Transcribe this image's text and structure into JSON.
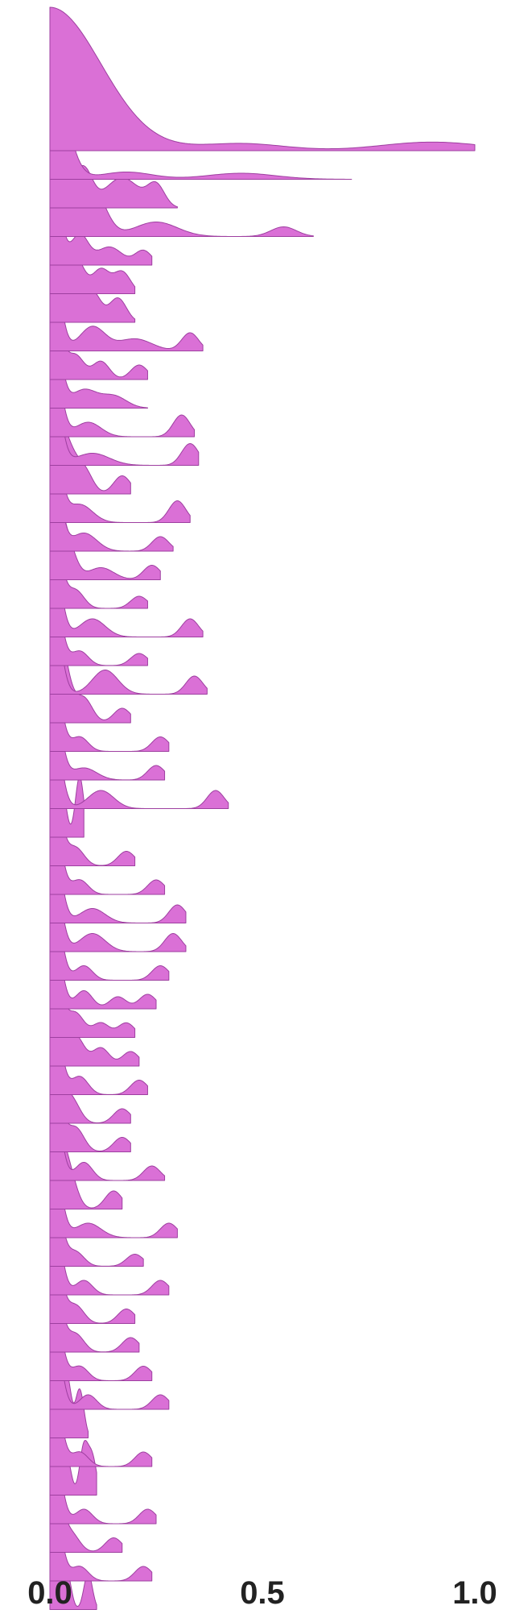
{
  "chart_data": {
    "type": "area",
    "subtype": "ridgeline",
    "title": "",
    "xlabel": "",
    "ylabel": "",
    "xlim": [
      0.0,
      1.0
    ],
    "xticks": [
      {
        "value": 0.0,
        "label": "0.0"
      },
      {
        "value": 0.5,
        "label": "0.5"
      },
      {
        "value": 1.0,
        "label": "1.0"
      }
    ],
    "color": "#da70d6",
    "grid": false,
    "legend": "none",
    "ridges": [
      {
        "max": 1.0,
        "peaks": [
          [
            0.0,
            1.0,
            0.12
          ],
          [
            0.45,
            0.05,
            0.1
          ],
          [
            0.9,
            0.06,
            0.12
          ]
        ]
      },
      {
        "max": 0.71,
        "peaks": [
          [
            0.0,
            1.0,
            0.035
          ],
          [
            0.18,
            0.06,
            0.06
          ],
          [
            0.45,
            0.05,
            0.08
          ]
        ]
      },
      {
        "max": 0.3,
        "peaks": [
          [
            0.0,
            1.0,
            0.03
          ],
          [
            0.08,
            0.3,
            0.02
          ],
          [
            0.17,
            0.25,
            0.04
          ],
          [
            0.25,
            0.18,
            0.02
          ]
        ]
      },
      {
        "max": 0.62,
        "peaks": [
          [
            0.0,
            1.0,
            0.03
          ],
          [
            0.1,
            0.4,
            0.03
          ],
          [
            0.25,
            0.12,
            0.05
          ],
          [
            0.55,
            0.08,
            0.03
          ]
        ]
      },
      {
        "max": 0.24,
        "peaks": [
          [
            0.0,
            1.0,
            0.02
          ],
          [
            0.07,
            0.25,
            0.02
          ],
          [
            0.14,
            0.15,
            0.03
          ],
          [
            0.22,
            0.12,
            0.02
          ]
        ]
      },
      {
        "max": 0.2,
        "peaks": [
          [
            0.0,
            1.0,
            0.02
          ],
          [
            0.06,
            0.3,
            0.02
          ],
          [
            0.12,
            0.2,
            0.02
          ],
          [
            0.17,
            0.18,
            0.02
          ]
        ]
      },
      {
        "max": 0.2,
        "peaks": [
          [
            0.0,
            1.0,
            0.02
          ],
          [
            0.05,
            0.3,
            0.02
          ],
          [
            0.1,
            0.25,
            0.02
          ],
          [
            0.16,
            0.2,
            0.02
          ]
        ]
      },
      {
        "max": 0.36,
        "peaks": [
          [
            0.0,
            1.0,
            0.02
          ],
          [
            0.1,
            0.2,
            0.03
          ],
          [
            0.2,
            0.1,
            0.04
          ],
          [
            0.33,
            0.15,
            0.02
          ]
        ]
      },
      {
        "max": 0.23,
        "peaks": [
          [
            0.0,
            1.0,
            0.02
          ],
          [
            0.06,
            0.2,
            0.02
          ],
          [
            0.12,
            0.15,
            0.02
          ],
          [
            0.21,
            0.12,
            0.02
          ]
        ]
      },
      {
        "max": 0.23,
        "peaks": [
          [
            0.0,
            1.0,
            0.02
          ],
          [
            0.08,
            0.15,
            0.03
          ],
          [
            0.15,
            0.1,
            0.03
          ]
        ]
      },
      {
        "max": 0.34,
        "peaks": [
          [
            0.0,
            1.0,
            0.02
          ],
          [
            0.09,
            0.12,
            0.03
          ],
          [
            0.31,
            0.18,
            0.02
          ]
        ]
      },
      {
        "max": 0.35,
        "peaks": [
          [
            0.0,
            1.0,
            0.02
          ],
          [
            0.1,
            0.1,
            0.04
          ],
          [
            0.33,
            0.18,
            0.02
          ]
        ]
      },
      {
        "max": 0.19,
        "peaks": [
          [
            0.0,
            1.0,
            0.02
          ],
          [
            0.04,
            0.35,
            0.02
          ],
          [
            0.08,
            0.2,
            0.02
          ],
          [
            0.17,
            0.15,
            0.02
          ]
        ]
      },
      {
        "max": 0.33,
        "peaks": [
          [
            0.0,
            1.0,
            0.02
          ],
          [
            0.07,
            0.15,
            0.03
          ],
          [
            0.3,
            0.18,
            0.02
          ]
        ]
      },
      {
        "max": 0.29,
        "peaks": [
          [
            0.0,
            1.0,
            0.02
          ],
          [
            0.08,
            0.15,
            0.03
          ],
          [
            0.26,
            0.12,
            0.02
          ]
        ]
      },
      {
        "max": 0.26,
        "peaks": [
          [
            0.0,
            1.0,
            0.02
          ],
          [
            0.04,
            0.3,
            0.02
          ],
          [
            0.12,
            0.1,
            0.03
          ],
          [
            0.24,
            0.12,
            0.02
          ]
        ]
      },
      {
        "max": 0.23,
        "peaks": [
          [
            0.0,
            1.0,
            0.02
          ],
          [
            0.06,
            0.15,
            0.02
          ],
          [
            0.21,
            0.1,
            0.02
          ]
        ]
      },
      {
        "max": 0.36,
        "peaks": [
          [
            0.0,
            1.0,
            0.02
          ],
          [
            0.1,
            0.15,
            0.03
          ],
          [
            0.33,
            0.15,
            0.02
          ]
        ]
      },
      {
        "max": 0.23,
        "peaks": [
          [
            0.0,
            1.0,
            0.02
          ],
          [
            0.07,
            0.12,
            0.02
          ],
          [
            0.21,
            0.1,
            0.02
          ]
        ]
      },
      {
        "max": 0.37,
        "peaks": [
          [
            0.0,
            1.0,
            0.02
          ],
          [
            0.13,
            0.2,
            0.03
          ],
          [
            0.34,
            0.15,
            0.02
          ]
        ]
      },
      {
        "max": 0.19,
        "peaks": [
          [
            0.0,
            1.0,
            0.02
          ],
          [
            0.03,
            0.4,
            0.02
          ],
          [
            0.08,
            0.2,
            0.02
          ],
          [
            0.17,
            0.12,
            0.02
          ]
        ]
      },
      {
        "max": 0.28,
        "peaks": [
          [
            0.0,
            1.0,
            0.02
          ],
          [
            0.07,
            0.12,
            0.02
          ],
          [
            0.26,
            0.12,
            0.02
          ]
        ]
      },
      {
        "max": 0.27,
        "peaks": [
          [
            0.0,
            1.0,
            0.02
          ],
          [
            0.08,
            0.1,
            0.03
          ],
          [
            0.25,
            0.12,
            0.02
          ]
        ]
      },
      {
        "max": 0.42,
        "peaks": [
          [
            0.0,
            1.0,
            0.02
          ],
          [
            0.12,
            0.15,
            0.03
          ],
          [
            0.39,
            0.15,
            0.02
          ]
        ]
      },
      {
        "max": 0.08,
        "peaks": [
          [
            0.0,
            1.0,
            0.015
          ],
          [
            0.03,
            0.3,
            0.01
          ],
          [
            0.07,
            0.5,
            0.01
          ]
        ]
      },
      {
        "max": 0.2,
        "peaks": [
          [
            0.0,
            1.0,
            0.02
          ],
          [
            0.06,
            0.15,
            0.02
          ],
          [
            0.18,
            0.12,
            0.02
          ]
        ]
      },
      {
        "max": 0.27,
        "peaks": [
          [
            0.0,
            1.0,
            0.02
          ],
          [
            0.07,
            0.12,
            0.02
          ],
          [
            0.25,
            0.12,
            0.02
          ]
        ]
      },
      {
        "max": 0.32,
        "peaks": [
          [
            0.0,
            1.0,
            0.02
          ],
          [
            0.1,
            0.12,
            0.03
          ],
          [
            0.3,
            0.15,
            0.02
          ]
        ]
      },
      {
        "max": 0.32,
        "peaks": [
          [
            0.0,
            1.0,
            0.02
          ],
          [
            0.1,
            0.15,
            0.03
          ],
          [
            0.29,
            0.15,
            0.02
          ]
        ]
      },
      {
        "max": 0.28,
        "peaks": [
          [
            0.0,
            1.0,
            0.02
          ],
          [
            0.08,
            0.12,
            0.02
          ],
          [
            0.26,
            0.12,
            0.02
          ]
        ]
      },
      {
        "max": 0.25,
        "peaks": [
          [
            0.0,
            1.0,
            0.02
          ],
          [
            0.08,
            0.15,
            0.02
          ],
          [
            0.16,
            0.1,
            0.02
          ],
          [
            0.23,
            0.12,
            0.02
          ]
        ]
      },
      {
        "max": 0.2,
        "peaks": [
          [
            0.0,
            1.0,
            0.02
          ],
          [
            0.06,
            0.2,
            0.02
          ],
          [
            0.12,
            0.12,
            0.02
          ],
          [
            0.18,
            0.12,
            0.02
          ]
        ]
      },
      {
        "max": 0.21,
        "peaks": [
          [
            0.0,
            1.0,
            0.02
          ],
          [
            0.06,
            0.25,
            0.02
          ],
          [
            0.12,
            0.15,
            0.02
          ],
          [
            0.19,
            0.12,
            0.02
          ]
        ]
      },
      {
        "max": 0.23,
        "peaks": [
          [
            0.0,
            1.0,
            0.02
          ],
          [
            0.07,
            0.15,
            0.02
          ],
          [
            0.21,
            0.12,
            0.02
          ]
        ]
      },
      {
        "max": 0.19,
        "peaks": [
          [
            0.0,
            1.0,
            0.02
          ],
          [
            0.05,
            0.2,
            0.02
          ],
          [
            0.17,
            0.12,
            0.02
          ]
        ]
      },
      {
        "max": 0.19,
        "peaks": [
          [
            0.0,
            1.0,
            0.02
          ],
          [
            0.06,
            0.2,
            0.02
          ],
          [
            0.17,
            0.12,
            0.02
          ]
        ]
      },
      {
        "max": 0.27,
        "peaks": [
          [
            0.0,
            1.0,
            0.02
          ],
          [
            0.08,
            0.15,
            0.02
          ],
          [
            0.24,
            0.12,
            0.02
          ]
        ]
      },
      {
        "max": 0.17,
        "peaks": [
          [
            0.0,
            1.0,
            0.02
          ],
          [
            0.04,
            0.35,
            0.02
          ],
          [
            0.15,
            0.15,
            0.02
          ]
        ]
      },
      {
        "max": 0.3,
        "peaks": [
          [
            0.0,
            1.0,
            0.02
          ],
          [
            0.09,
            0.12,
            0.03
          ],
          [
            0.28,
            0.12,
            0.02
          ]
        ]
      },
      {
        "max": 0.22,
        "peaks": [
          [
            0.0,
            1.0,
            0.02
          ],
          [
            0.06,
            0.12,
            0.02
          ],
          [
            0.2,
            0.1,
            0.02
          ]
        ]
      },
      {
        "max": 0.28,
        "peaks": [
          [
            0.0,
            1.0,
            0.02
          ],
          [
            0.08,
            0.12,
            0.02
          ],
          [
            0.26,
            0.12,
            0.02
          ]
        ]
      },
      {
        "max": 0.2,
        "peaks": [
          [
            0.0,
            1.0,
            0.02
          ],
          [
            0.06,
            0.15,
            0.02
          ],
          [
            0.18,
            0.12,
            0.02
          ]
        ]
      },
      {
        "max": 0.21,
        "peaks": [
          [
            0.0,
            1.0,
            0.02
          ],
          [
            0.06,
            0.15,
            0.02
          ],
          [
            0.19,
            0.12,
            0.02
          ]
        ]
      },
      {
        "max": 0.24,
        "peaks": [
          [
            0.0,
            1.0,
            0.02
          ],
          [
            0.07,
            0.12,
            0.02
          ],
          [
            0.22,
            0.12,
            0.02
          ]
        ]
      },
      {
        "max": 0.28,
        "peaks": [
          [
            0.0,
            1.0,
            0.02
          ],
          [
            0.09,
            0.12,
            0.02
          ],
          [
            0.26,
            0.12,
            0.02
          ]
        ]
      },
      {
        "max": 0.09,
        "peaks": [
          [
            0.0,
            1.0,
            0.015
          ],
          [
            0.04,
            0.5,
            0.01
          ],
          [
            0.07,
            0.4,
            0.01
          ]
        ]
      },
      {
        "max": 0.24,
        "peaks": [
          [
            0.0,
            1.0,
            0.02
          ],
          [
            0.07,
            0.12,
            0.02
          ],
          [
            0.22,
            0.12,
            0.02
          ]
        ]
      },
      {
        "max": 0.11,
        "peaks": [
          [
            0.0,
            1.0,
            0.015
          ],
          [
            0.04,
            0.3,
            0.01
          ],
          [
            0.08,
            0.4,
            0.01
          ],
          [
            0.1,
            0.3,
            0.01
          ]
        ]
      },
      {
        "max": 0.25,
        "peaks": [
          [
            0.0,
            1.0,
            0.02
          ],
          [
            0.08,
            0.12,
            0.02
          ],
          [
            0.23,
            0.12,
            0.02
          ]
        ]
      },
      {
        "max": 0.17,
        "peaks": [
          [
            0.0,
            1.0,
            0.02
          ],
          [
            0.05,
            0.15,
            0.02
          ],
          [
            0.15,
            0.12,
            0.02
          ]
        ]
      },
      {
        "max": 0.24,
        "peaks": [
          [
            0.0,
            1.0,
            0.02
          ],
          [
            0.07,
            0.12,
            0.02
          ],
          [
            0.22,
            0.12,
            0.02
          ]
        ]
      },
      {
        "max": 0.11,
        "peaks": [
          [
            0.0,
            1.0,
            0.015
          ],
          [
            0.04,
            0.3,
            0.01
          ],
          [
            0.09,
            0.3,
            0.01
          ]
        ]
      }
    ]
  }
}
